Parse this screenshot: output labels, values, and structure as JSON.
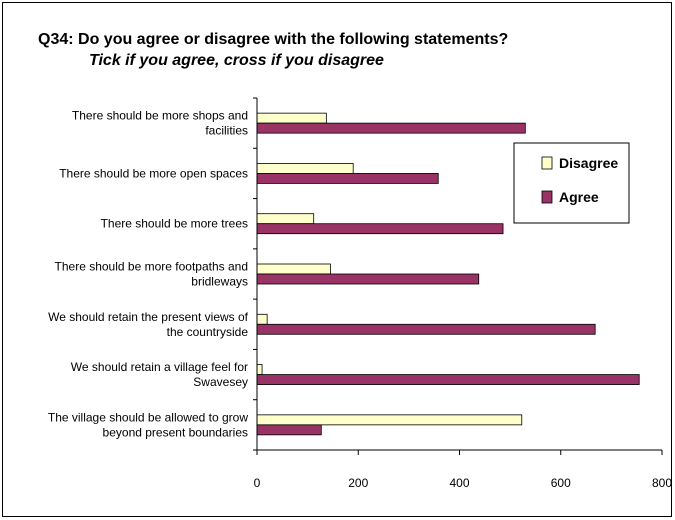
{
  "chart_data": {
    "type": "bar",
    "orientation": "horizontal",
    "title": "Q34:  Do you agree or disagree with the following statements?",
    "subtitle": "Tick if you agree, cross if you disagree",
    "categories": [
      [
        "There  should be more shops and",
        "facilities"
      ],
      [
        "There should be more open spaces"
      ],
      [
        "There should be more trees"
      ],
      [
        "There should be more footpaths and",
        "bridleways"
      ],
      [
        "We should retain the present views of",
        "the countryside"
      ],
      [
        "We should retain a village feel for",
        "Swavesey"
      ],
      [
        "The village should be allowed to grow",
        "beyond present boundaries"
      ]
    ],
    "series": [
      {
        "name": "Disagree",
        "color": "#ffffcc",
        "values": [
          137,
          190,
          112,
          145,
          20,
          10,
          523
        ]
      },
      {
        "name": "Agree",
        "color": "#993366",
        "values": [
          530,
          358,
          486,
          438,
          668,
          755,
          127
        ]
      }
    ],
    "xlim": [
      0,
      800
    ],
    "xticks": [
      "0",
      "200",
      "400",
      "600",
      "800"
    ],
    "legend_position": "right",
    "grid": false
  }
}
